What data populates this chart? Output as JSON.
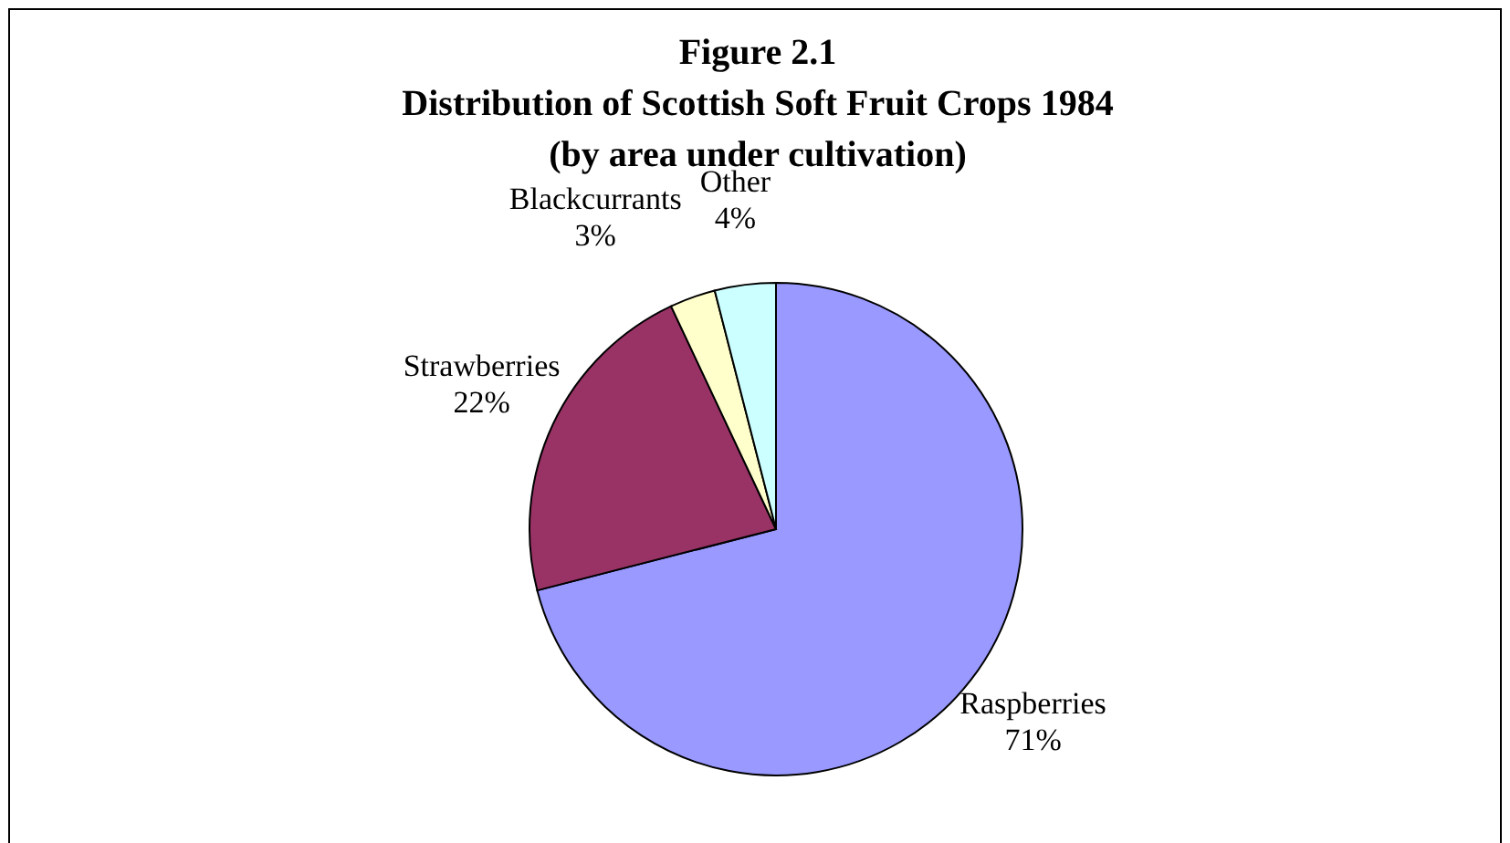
{
  "chart_data": {
    "type": "pie",
    "title": "Figure 2.1\nDistribution of Scottish Soft Fruit Crops 1984\n(by area under cultivation)",
    "categories": [
      "Raspberries",
      "Strawberries",
      "Blackcurrants",
      "Other"
    ],
    "values": [
      71,
      22,
      3,
      4
    ],
    "colors": [
      "#9999ff",
      "#993366",
      "#ffffcc",
      "#ccffff"
    ],
    "value_labels": [
      "71%",
      "22%",
      "3%",
      "4%"
    ],
    "legend": false
  }
}
